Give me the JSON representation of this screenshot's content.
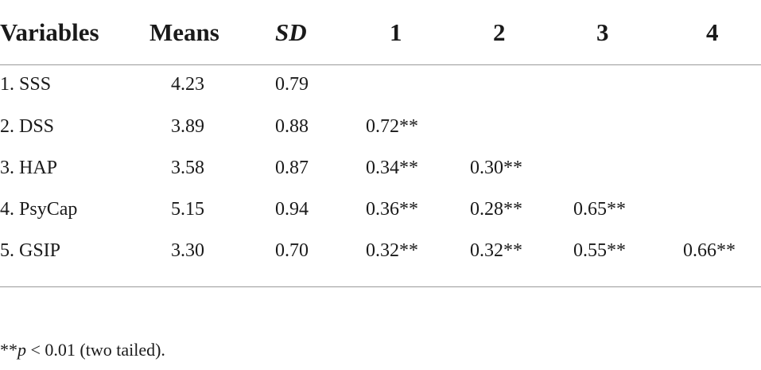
{
  "table": {
    "headers": [
      "Variables",
      "Means",
      "SD",
      "1",
      "2",
      "3",
      "4"
    ],
    "rows": [
      [
        "1. SSS",
        "4.23",
        "0.79",
        "",
        "",
        "",
        ""
      ],
      [
        "2. DSS",
        "3.89",
        "0.88",
        "0.72**",
        "",
        "",
        ""
      ],
      [
        "3. HAP",
        "3.58",
        "0.87",
        "0.34**",
        "0.30**",
        "",
        ""
      ],
      [
        "4. PsyCap",
        "5.15",
        "0.94",
        "0.36**",
        "0.28**",
        "0.65**",
        ""
      ],
      [
        "5. GSIP",
        "3.30",
        "0.70",
        "0.32**",
        "0.32**",
        "0.55**",
        "0.66**"
      ]
    ]
  },
  "footnote": {
    "marker": "**",
    "p_symbol": "p",
    "rest": " < 0.01 (two tailed)."
  }
}
